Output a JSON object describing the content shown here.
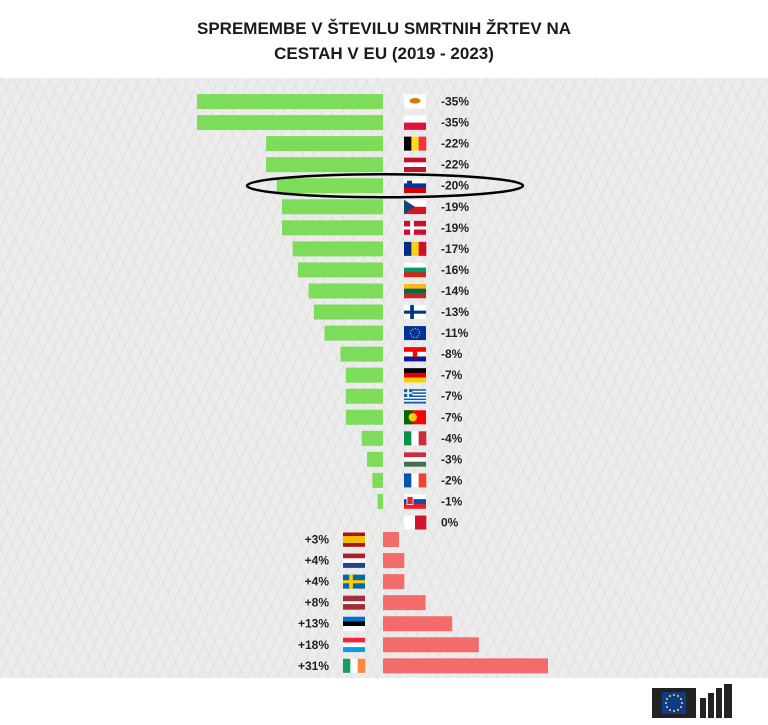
{
  "title_line1": "SPREMEMBE V ŠTEVILU SMRTNIH ŽRTEV NA",
  "title_line2": "CESTAH V EU (2019 - 2023)",
  "colors": {
    "decrease": "#7ddc5a",
    "increase": "#f36b6b",
    "highlight_ring": "#000000"
  },
  "chart_data": {
    "type": "bar",
    "title": "SPREMEMBE V ŠTEVILU SMRTNIH ŽRTEV NA CESTAH V EU (2019 - 2023)",
    "xlabel": "",
    "ylabel": "",
    "unit": "%",
    "orientation": "horizontal",
    "highlight": "slovenia",
    "grid": false,
    "legend": "none",
    "decreases": [
      {
        "flag": "cyprus",
        "value": -35,
        "label": "-35%"
      },
      {
        "flag": "poland",
        "value": -35,
        "label": "-35%"
      },
      {
        "flag": "belgium",
        "value": -22,
        "label": "-22%"
      },
      {
        "flag": "austria",
        "value": -22,
        "label": "-22%"
      },
      {
        "flag": "slovenia",
        "value": -20,
        "label": "-20%"
      },
      {
        "flag": "czechia",
        "value": -19,
        "label": "-19%"
      },
      {
        "flag": "denmark",
        "value": -19,
        "label": "-19%"
      },
      {
        "flag": "romania",
        "value": -17,
        "label": "-17%"
      },
      {
        "flag": "bulgaria",
        "value": -16,
        "label": "-16%"
      },
      {
        "flag": "lithuania",
        "value": -14,
        "label": "-14%"
      },
      {
        "flag": "finland",
        "value": -13,
        "label": "-13%"
      },
      {
        "flag": "eu",
        "value": -11,
        "label": "-11%"
      },
      {
        "flag": "croatia",
        "value": -8,
        "label": "-8%"
      },
      {
        "flag": "germany",
        "value": -7,
        "label": "-7%"
      },
      {
        "flag": "greece",
        "value": -7,
        "label": "-7%"
      },
      {
        "flag": "portugal",
        "value": -7,
        "label": "-7%"
      },
      {
        "flag": "italy",
        "value": -4,
        "label": "-4%"
      },
      {
        "flag": "hungary",
        "value": -3,
        "label": "-3%"
      },
      {
        "flag": "france",
        "value": -2,
        "label": "-2%"
      },
      {
        "flag": "slovakia",
        "value": -1,
        "label": "-1%"
      },
      {
        "flag": "malta",
        "value": 0,
        "label": "0%"
      }
    ],
    "increases": [
      {
        "flag": "spain",
        "value": 3,
        "label": "+3%"
      },
      {
        "flag": "netherlands",
        "value": 4,
        "label": "+4%"
      },
      {
        "flag": "sweden",
        "value": 4,
        "label": "+4%"
      },
      {
        "flag": "latvia",
        "value": 8,
        "label": "+8%"
      },
      {
        "flag": "estonia",
        "value": 13,
        "label": "+13%"
      },
      {
        "flag": "luxembourg",
        "value": 18,
        "label": "+18%"
      },
      {
        "flag": "ireland",
        "value": 31,
        "label": "+31%"
      }
    ]
  }
}
